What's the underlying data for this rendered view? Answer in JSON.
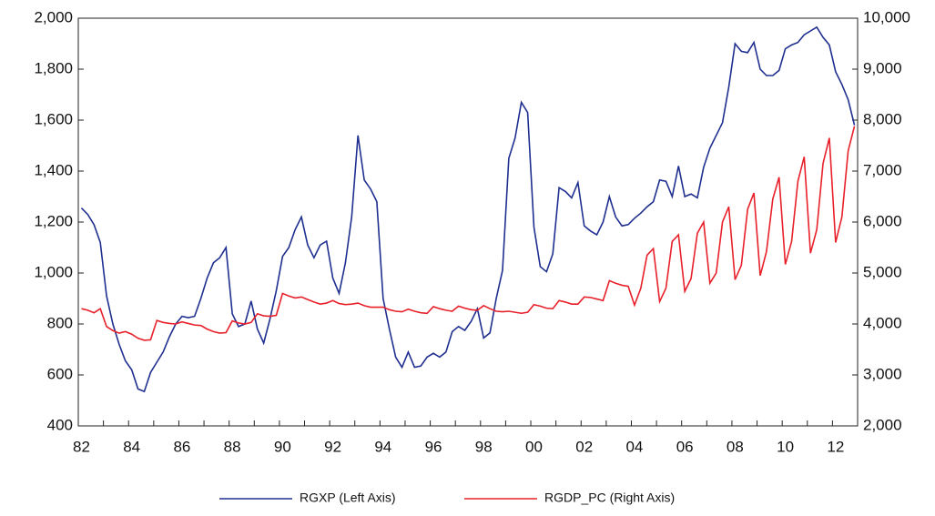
{
  "chart_data": {
    "type": "line",
    "categories": [
      "82",
      null,
      null,
      null,
      null,
      null,
      null,
      null,
      "84",
      null,
      null,
      null,
      null,
      null,
      null,
      null,
      "86",
      null,
      null,
      null,
      null,
      null,
      null,
      null,
      "88",
      null,
      null,
      null,
      null,
      null,
      null,
      null,
      "90",
      null,
      null,
      null,
      null,
      null,
      null,
      null,
      "92",
      null,
      null,
      null,
      null,
      null,
      null,
      null,
      "94",
      null,
      null,
      null,
      null,
      null,
      null,
      null,
      "96",
      null,
      null,
      null,
      null,
      null,
      null,
      null,
      "98",
      null,
      null,
      null,
      null,
      null,
      null,
      null,
      "00",
      null,
      null,
      null,
      null,
      null,
      null,
      null,
      "02",
      null,
      null,
      null,
      null,
      null,
      null,
      null,
      "04",
      null,
      null,
      null,
      null,
      null,
      null,
      null,
      "06",
      null,
      null,
      null,
      null,
      null,
      null,
      null,
      "08",
      null,
      null,
      null,
      null,
      null,
      null,
      null,
      "10",
      null,
      null,
      null,
      null,
      null,
      null,
      null,
      "12",
      null,
      null,
      null
    ],
    "series": [
      {
        "name": "RGXP (Left Axis)",
        "color": "#1f2f8f",
        "axis": "y",
        "values": [
          1255,
          1230,
          1190,
          1120,
          910,
          800,
          720,
          655,
          620,
          545,
          535,
          610,
          650,
          690,
          750,
          800,
          830,
          825,
          830,
          900,
          980,
          1040,
          1060,
          1100,
          840,
          790,
          800,
          890,
          780,
          725,
          820,
          930,
          1065,
          1100,
          1170,
          1220,
          1110,
          1060,
          1110,
          1125,
          980,
          920,
          1040,
          1220,
          1540,
          1365,
          1330,
          1280,
          900,
          780,
          670,
          630,
          690,
          630,
          635,
          670,
          685,
          670,
          690,
          770,
          790,
          775,
          810,
          860,
          745,
          765,
          900,
          1010,
          1450,
          1530,
          1670,
          1630,
          1180,
          1025,
          1005,
          1075,
          1335,
          1320,
          1295,
          1355,
          1185,
          1165,
          1150,
          1200,
          1300,
          1220,
          1185,
          1190,
          1215,
          1235,
          1260,
          1280,
          1365,
          1360,
          1300,
          1420,
          1300,
          1310,
          1295,
          1415,
          1490,
          1540,
          1590,
          1730,
          1900,
          1870,
          1865,
          1905,
          1800,
          1775,
          1775,
          1795,
          1880,
          1895,
          1905,
          1935,
          1950,
          1965,
          1925,
          1895,
          1790,
          1740,
          1680,
          1580
        ]
      },
      {
        "name": "RGDP_PC (Right Axis)",
        "color": "#e8202a",
        "axis": "y2",
        "values": [
          4300,
          4270,
          4220,
          4300,
          3950,
          3870,
          3820,
          3850,
          3800,
          3720,
          3680,
          3690,
          4070,
          4030,
          4010,
          4000,
          4040,
          4010,
          3980,
          3970,
          3900,
          3850,
          3820,
          3830,
          4060,
          4020,
          4000,
          4030,
          4200,
          4160,
          4150,
          4170,
          4600,
          4550,
          4510,
          4530,
          4480,
          4430,
          4390,
          4410,
          4460,
          4400,
          4380,
          4390,
          4410,
          4360,
          4330,
          4330,
          4330,
          4280,
          4250,
          4240,
          4290,
          4250,
          4220,
          4210,
          4340,
          4300,
          4270,
          4250,
          4350,
          4310,
          4280,
          4270,
          4360,
          4300,
          4250,
          4240,
          4250,
          4230,
          4210,
          4230,
          4380,
          4350,
          4310,
          4300,
          4460,
          4430,
          4390,
          4390,
          4530,
          4520,
          4490,
          4460,
          4850,
          4800,
          4760,
          4740,
          4370,
          4700,
          5350,
          5480,
          4440,
          4700,
          5620,
          5750,
          4640,
          4890,
          5780,
          6000,
          4800,
          5000,
          6000,
          6300,
          4870,
          5150,
          6250,
          6570,
          4950,
          5420,
          6450,
          6880,
          5170,
          5620,
          6800,
          7280,
          5390,
          5850,
          7150,
          7650,
          5600,
          6100,
          7400,
          7880
        ]
      }
    ],
    "ylim": [
      400,
      2000
    ],
    "yticks": [
      400,
      600,
      800,
      {
        "value": 1000,
        "label": "1,000"
      },
      {
        "value": 1200,
        "label": "1,200"
      },
      {
        "value": 1400,
        "label": "1,400"
      },
      {
        "value": 1600,
        "label": "1,600"
      },
      {
        "value": 1800,
        "label": "1,800"
      },
      {
        "value": 2000,
        "label": "2,000"
      }
    ],
    "y2lim": [
      2000,
      10000
    ],
    "y2ticks": [
      {
        "value": 2000,
        "label": "2,000"
      },
      {
        "value": 3000,
        "label": "3,000"
      },
      {
        "value": 4000,
        "label": "4,000"
      },
      {
        "value": 5000,
        "label": "5,000"
      },
      {
        "value": 6000,
        "label": "6,000"
      },
      {
        "value": 7000,
        "label": "7,000"
      },
      {
        "value": 8000,
        "label": "8,000"
      },
      {
        "value": 9000,
        "label": "9,000"
      },
      {
        "value": 10000,
        "label": "10,000"
      }
    ],
    "grid": false,
    "legend": "bottom"
  }
}
